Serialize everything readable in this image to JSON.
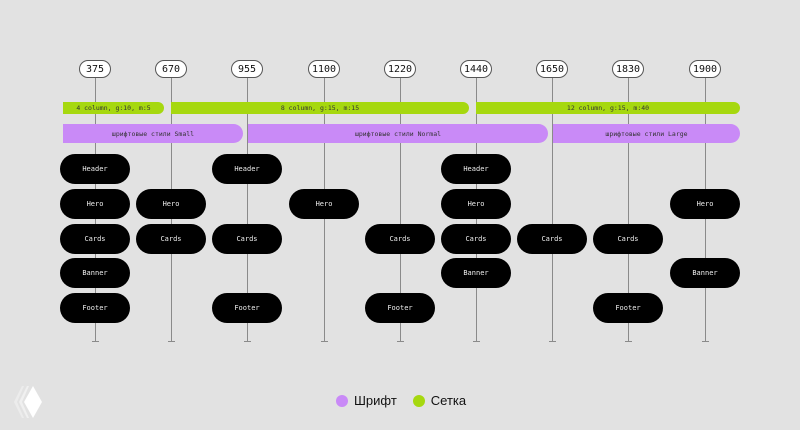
{
  "breakpoints": [
    "375",
    "670",
    "955",
    "1100",
    "1220",
    "1440",
    "1650",
    "1830",
    "1900"
  ],
  "grid_bars": [
    {
      "label": "4 column, g:10, m:5",
      "from": 0,
      "to": 1
    },
    {
      "label": "8 column, g:15, m:15",
      "from": 1,
      "to": 5
    },
    {
      "label": "12 column, g:15, m:40",
      "from": 5,
      "to": 9
    }
  ],
  "font_bars": [
    {
      "label": "шрифтовые стили Small",
      "from": 0,
      "to": 2
    },
    {
      "label": "шрифтовые стили Normal",
      "from": 2,
      "to": 6
    },
    {
      "label": "шрифтовые стили Large",
      "from": 6,
      "to": 9
    }
  ],
  "rows": [
    "Header",
    "Hero",
    "Cards",
    "Banner",
    "Footer"
  ],
  "components": [
    [
      "Header",
      "Hero",
      "Cards",
      "Banner",
      "Footer"
    ],
    [
      "Hero",
      "Cards"
    ],
    [
      "Header",
      "Cards",
      "Footer"
    ],
    [
      "Hero"
    ],
    [
      "Cards",
      "Footer"
    ],
    [
      "Header",
      "Hero",
      "Cards",
      "Banner"
    ],
    [
      "Cards"
    ],
    [
      "Cards",
      "Footer"
    ],
    [
      "Hero",
      "Banner"
    ]
  ],
  "legend": {
    "font": {
      "label": "Шрифт",
      "color": "#c98af7"
    },
    "grid": {
      "label": "Сетка",
      "color": "#a6d80f"
    }
  }
}
